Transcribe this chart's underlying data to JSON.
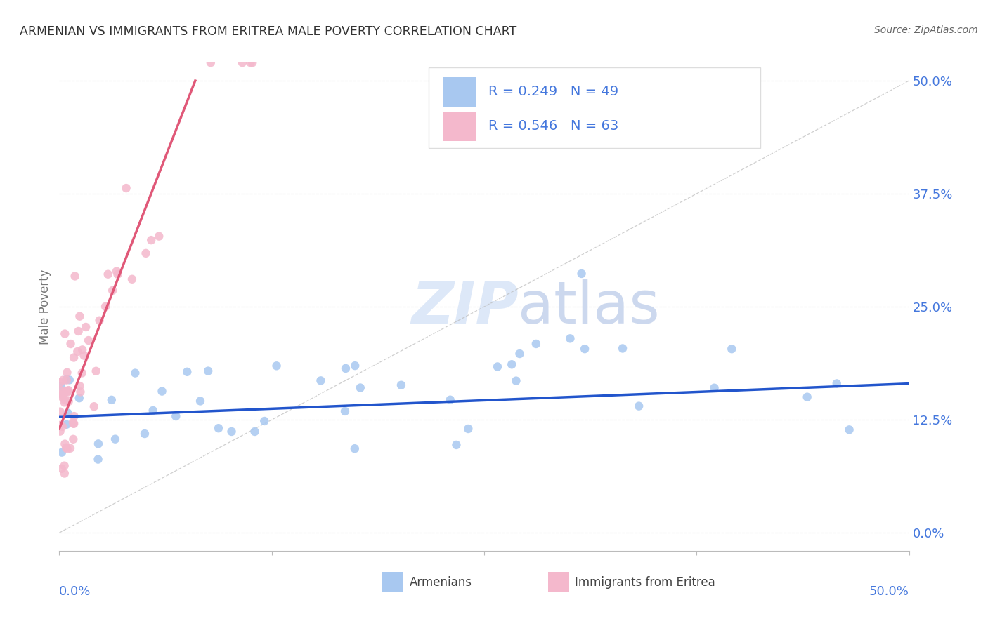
{
  "title": "ARMENIAN VS IMMIGRANTS FROM ERITREA MALE POVERTY CORRELATION CHART",
  "source": "Source: ZipAtlas.com",
  "ylabel": "Male Poverty",
  "ytick_values": [
    0.0,
    12.5,
    25.0,
    37.5,
    50.0
  ],
  "xlim": [
    0.0,
    50.0
  ],
  "ylim": [
    -2.0,
    52.0
  ],
  "watermark_zip": "ZIP",
  "watermark_atlas": "atlas",
  "legend_bottom_blue": "Armenians",
  "legend_bottom_pink": "Immigrants from Eritrea",
  "blue_scatter_color": "#a8c8f0",
  "pink_scatter_color": "#f4b8cc",
  "blue_line_color": "#2255cc",
  "pink_line_color": "#e05878",
  "axis_label_color": "#4477dd",
  "title_color": "#333333",
  "source_color": "#666666",
  "grid_color": "#cccccc",
  "legend_R_blue": "R = 0.249",
  "legend_N_blue": "N = 49",
  "legend_R_pink": "R = 0.546",
  "legend_N_pink": "N = 63",
  "blue_trendline_start_x": 0.0,
  "blue_trendline_start_y": 12.8,
  "blue_trendline_end_x": 50.0,
  "blue_trendline_end_y": 16.5,
  "pink_trendline_start_x": 0.0,
  "pink_trendline_start_y": 11.5,
  "pink_trendline_end_x": 8.0,
  "pink_trendline_end_y": 50.0
}
